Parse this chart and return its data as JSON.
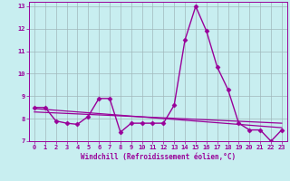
{
  "xlabel": "Windchill (Refroidissement éolien,°C)",
  "background_color": "#c8eef0",
  "line_color": "#990099",
  "grid_color": "#a0b8bb",
  "xlim": [
    -0.5,
    23.5
  ],
  "ylim": [
    7,
    13.2
  ],
  "yticks": [
    7,
    8,
    9,
    10,
    11,
    12,
    13
  ],
  "xticks": [
    0,
    1,
    2,
    3,
    4,
    5,
    6,
    7,
    8,
    9,
    10,
    11,
    12,
    13,
    14,
    15,
    16,
    17,
    18,
    19,
    20,
    21,
    22,
    23
  ],
  "series1_x": [
    0,
    1,
    2,
    3,
    4,
    5,
    6,
    7,
    8,
    9,
    10,
    11,
    12,
    13,
    14,
    15,
    16,
    17,
    18,
    19,
    20,
    21,
    22,
    23
  ],
  "series1_y": [
    8.5,
    8.5,
    7.9,
    7.8,
    7.75,
    8.1,
    8.9,
    8.9,
    7.4,
    7.8,
    7.8,
    7.8,
    7.8,
    8.6,
    11.5,
    13.0,
    11.9,
    10.3,
    9.3,
    7.8,
    7.5,
    7.5,
    7.0,
    7.5
  ],
  "series2_x": [
    0,
    23
  ],
  "series2_y": [
    8.45,
    7.6
  ],
  "series3_x": [
    0,
    23
  ],
  "series3_y": [
    8.3,
    7.8
  ],
  "marker": "D",
  "markersize": 2.5,
  "linewidth": 1.0,
  "trend_linewidth": 0.9,
  "tick_fontsize": 5.0,
  "xlabel_fontsize": 5.5
}
